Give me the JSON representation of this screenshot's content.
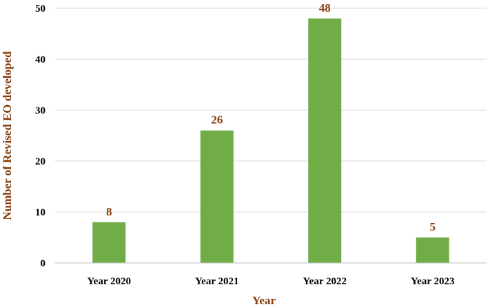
{
  "chart_data": {
    "type": "bar",
    "categories": [
      "Year 2020",
      "Year 2021",
      "Year 2022",
      "Year 2023"
    ],
    "values": [
      8,
      26,
      48,
      5
    ],
    "data_labels": [
      "8",
      "26",
      "48",
      "5"
    ],
    "xlabel": "Year",
    "ylabel": "Number of Revised EO developed",
    "ylim": [
      0,
      50
    ],
    "yticks": [
      0,
      10,
      20,
      30,
      40,
      50
    ],
    "grid": true,
    "legend": "none"
  },
  "colors": {
    "bar": "#70ad47",
    "label": "#843c0c",
    "grid": "#d9d9d9",
    "axis": "#bfbfbf"
  }
}
